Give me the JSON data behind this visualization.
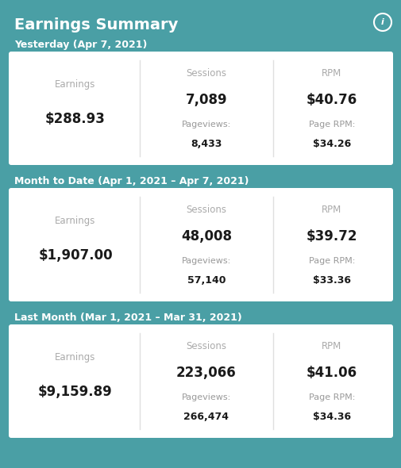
{
  "title": "Earnings Summary",
  "bg_color": "#4a9fa5",
  "card_color": "#ffffff",
  "title_color": "#ffffff",
  "section_label_color": "#ffffff",
  "col_header_color": "#aaaaaa",
  "main_value_color": "#1a1a1a",
  "sub_label_color": "#999999",
  "sub_value_color": "#1a1a1a",
  "divider_color": "#e0e0e0",
  "info_icon_color": "#ffffff",
  "sections": [
    {
      "label": "Yesterday (Apr 7, 2021)",
      "columns": [
        {
          "header": "Earnings",
          "main_value": "$288.93",
          "sub_label": null,
          "sub_value": null
        },
        {
          "header": "Sessions",
          "main_value": "7,089",
          "sub_label": "Pageviews:",
          "sub_value": "8,433"
        },
        {
          "header": "RPM",
          "main_value": "$40.76",
          "sub_label": "Page RPM:",
          "sub_value": "$34.26"
        }
      ]
    },
    {
      "label": "Month to Date (Apr 1, 2021 – Apr 7, 2021)",
      "columns": [
        {
          "header": "Earnings",
          "main_value": "$1,907.00",
          "sub_label": null,
          "sub_value": null
        },
        {
          "header": "Sessions",
          "main_value": "48,008",
          "sub_label": "Pageviews:",
          "sub_value": "57,140"
        },
        {
          "header": "RPM",
          "main_value": "$39.72",
          "sub_label": "Page RPM:",
          "sub_value": "$33.36"
        }
      ]
    },
    {
      "label": "Last Month (Mar 1, 2021 – Mar 31, 2021)",
      "columns": [
        {
          "header": "Earnings",
          "main_value": "$9,159.89",
          "sub_label": null,
          "sub_value": null
        },
        {
          "header": "Sessions",
          "main_value": "223,066",
          "sub_label": "Pageviews:",
          "sub_value": "266,474"
        },
        {
          "header": "RPM",
          "main_value": "$41.06",
          "sub_label": "Page RPM:",
          "sub_value": "$34.36"
        }
      ]
    }
  ]
}
